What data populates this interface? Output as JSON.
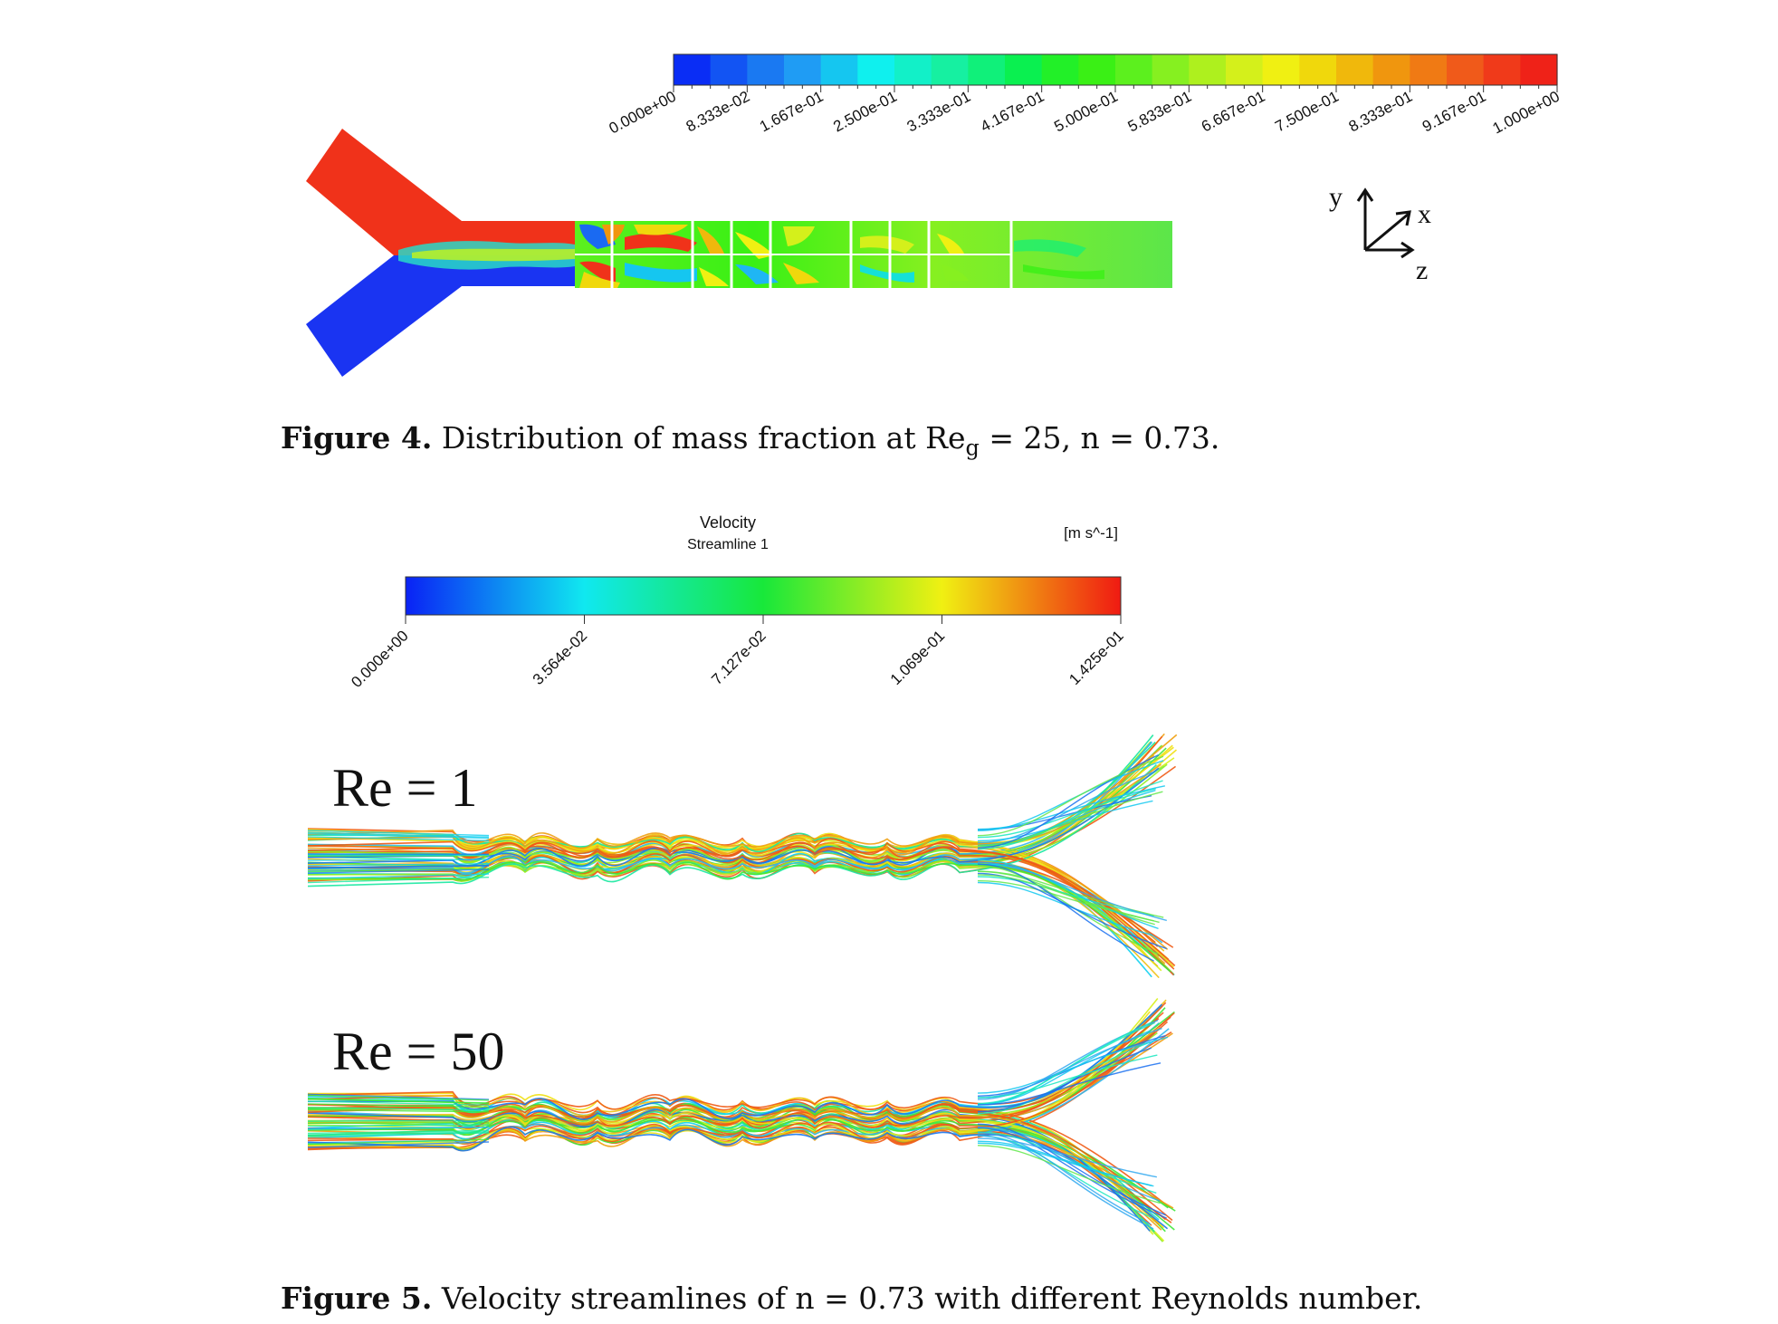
{
  "figure4": {
    "colorbar": {
      "ticks": [
        "0.000e+00",
        "8.333e-02",
        "1.667e-01",
        "2.500e-01",
        "3.333e-01",
        "4.167e-01",
        "5.000e-01",
        "5.833e-01",
        "6.667e-01",
        "7.500e-01",
        "8.333e-01",
        "9.167e-01",
        "1.000e+00"
      ],
      "colors": [
        "#0a2df5",
        "#1254f3",
        "#1a79f2",
        "#1f9cf4",
        "#15c6f0",
        "#0ff0ee",
        "#12f0c8",
        "#16f0a1",
        "#10f07a",
        "#0af050",
        "#22f028",
        "#3af015",
        "#5cf01e",
        "#86f020",
        "#aef01e",
        "#d4f01b",
        "#f0f012",
        "#f0d80c",
        "#f0b80c",
        "#f0960e",
        "#f07a14",
        "#f05a1a",
        "#f03a1a",
        "#ef2218"
      ]
    },
    "axes_triad": {
      "y": "y",
      "x": "x",
      "z": "z"
    },
    "caption": {
      "label": "Figure 4.",
      "text_before": "Distribution of mass fraction at Re",
      "subscript": "g",
      "text_after": "= 25, n = 0.73."
    }
  },
  "figure5": {
    "colorbar": {
      "title_line1": "Velocity",
      "title_line2": "Streamline 1",
      "unit": "[m s^-1]",
      "ticks": [
        "0.000e+00",
        "3.564e-02",
        "7.127e-02",
        "1.069e-01",
        "1.425e-01"
      ]
    },
    "panels": [
      {
        "label": "Re = 1"
      },
      {
        "label": "Re = 50"
      }
    ],
    "caption": {
      "label": "Figure 5.",
      "text": "Velocity streamlines of n = 0.73 with different Reynolds number."
    }
  },
  "colors": {
    "red": "#f0321a",
    "blue": "#1a34f2",
    "green": "#5ce64a",
    "text": "#111111"
  }
}
